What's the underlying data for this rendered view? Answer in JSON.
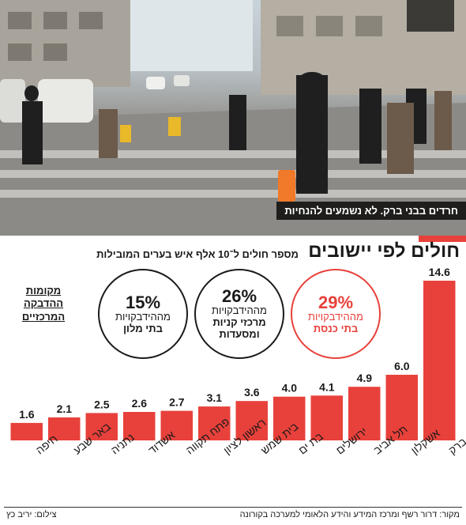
{
  "photo": {
    "caption": "חרדים בבני ברק. לא נשמעים להנחיות",
    "icon": "street-photo-illustration"
  },
  "header": {
    "title": "חולים לפי יישובים",
    "subtitle": "מספר חולים ל־10 אלף איש בערים המובילות"
  },
  "infection_sites": {
    "heading_lines": [
      "מקומות",
      "ההדבקה",
      "המרכזיים"
    ],
    "items": [
      {
        "percent": "29%",
        "line1": "מההידבקויות",
        "line2": "בתי כנסת",
        "color": "#e8413b"
      },
      {
        "percent": "26%",
        "line1": "מההידבקויות",
        "line2": "מרכזי קניות",
        "line3": "ומסעדות",
        "color": "#1a1a1a"
      },
      {
        "percent": "15%",
        "line1": "מההידבקויות",
        "line2": "בתי מלון",
        "color": "#1a1a1a"
      }
    ]
  },
  "chart_data": {
    "type": "bar",
    "categories": [
      "בני ברק",
      "אשקלון",
      "תל אביב",
      "ירושלים",
      "בת ים",
      "בית שמש",
      "ראשון לציון",
      "פתח תקווה",
      "אשדוד",
      "נתניה",
      "באר שבע",
      "חיפה"
    ],
    "values": [
      14.6,
      6.0,
      4.9,
      4.1,
      4.0,
      3.6,
      3.1,
      2.7,
      2.6,
      2.5,
      2.1,
      1.6
    ],
    "value_labels": [
      "14.6",
      "6.0",
      "4.9",
      "4.1",
      "4.0",
      "3.6",
      "3.1",
      "2.7",
      "2.6",
      "2.5",
      "2.1",
      "1.6"
    ],
    "title": "חולים לפי יישובים",
    "ylim": [
      0,
      14.6
    ],
    "grid": false,
    "bar_color": "#e8413b"
  },
  "footer": {
    "source": "מקור: דרור רשף ומרכז המידע והידע הלאומי למערכה בקורונה",
    "credit": "צילום: יריב כץ"
  }
}
